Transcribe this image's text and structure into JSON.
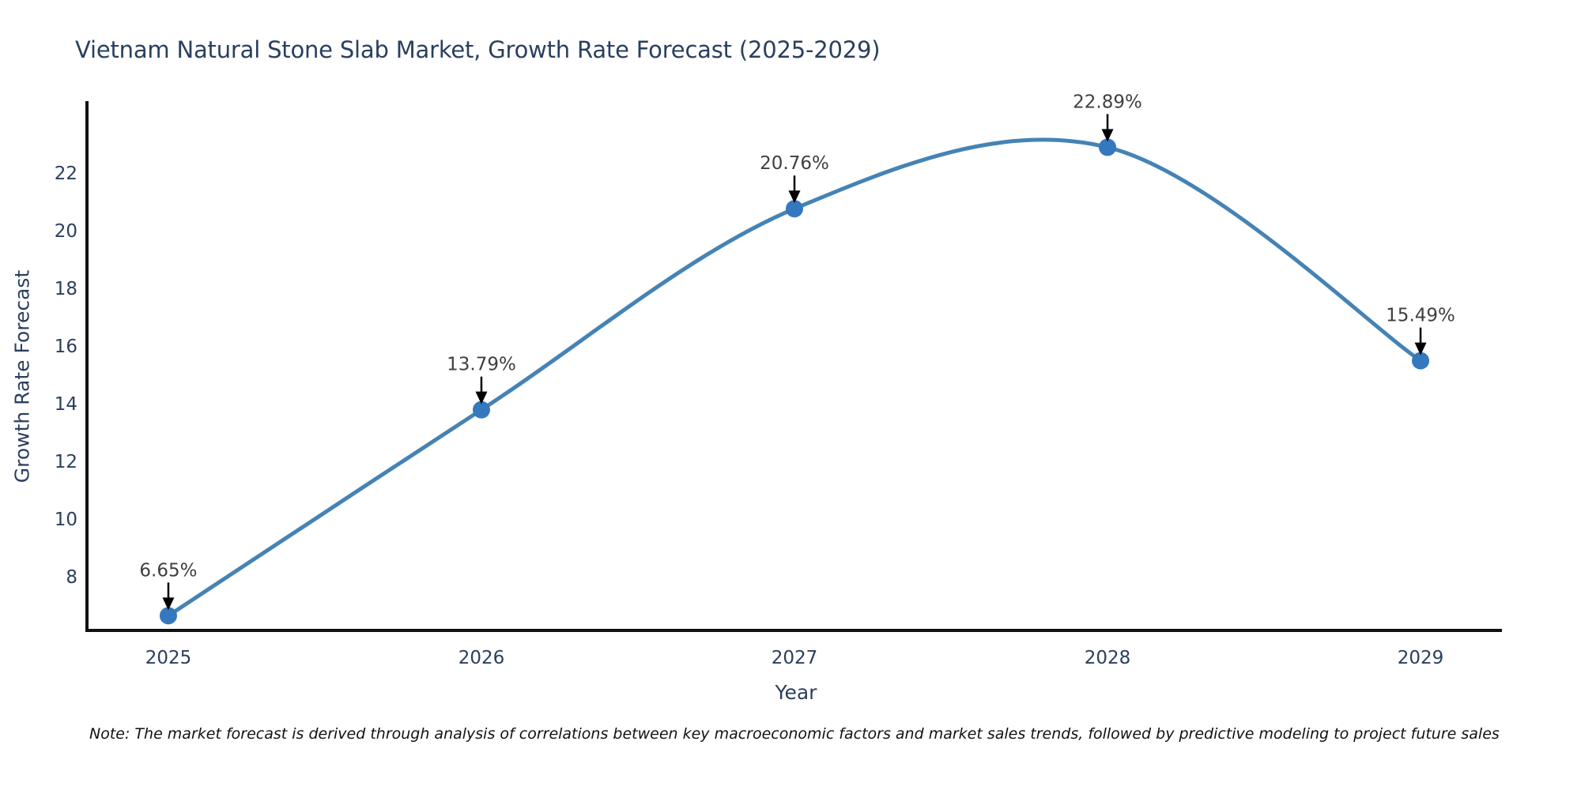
{
  "title": "Vietnam Natural Stone Slab Market, Growth Rate Forecast (2025-2029)",
  "note": "Note: The market forecast is derived through analysis of correlations between key macroeconomic factors and market sales trends, followed by predictive modeling to project future sales",
  "chart_data": {
    "type": "line",
    "title": "Vietnam Natural Stone Slab Market, Growth Rate Forecast (2025-2029)",
    "xlabel": "Year",
    "ylabel": "Growth Rate Forecast",
    "x": [
      2025,
      2026,
      2027,
      2028,
      2029
    ],
    "series": [
      {
        "name": "Growth Rate Forecast",
        "values": [
          6.65,
          13.79,
          20.76,
          22.89,
          15.49
        ],
        "point_labels": [
          "6.65%",
          "13.79%",
          "20.76%",
          "22.89%",
          "15.49%"
        ]
      }
    ],
    "line_shape": "spline",
    "markers": true,
    "annotations_arrows": true,
    "grid": false,
    "legend_position": "none",
    "xticks": [
      "2025",
      "2026",
      "2027",
      "2028",
      "2029"
    ],
    "yticks": [
      8,
      10,
      12,
      14,
      16,
      18,
      20,
      22
    ],
    "xlim": [
      2024.74,
      2029.26
    ],
    "ylim": [
      6.14,
      24.49
    ],
    "colors": {
      "line": "#4583b5",
      "marker": "#3478bd",
      "axis_line": "#111111",
      "tick_text": "#2a3f5f",
      "title_text": "#2a3f5f",
      "annotation_text": "#3f3f3f",
      "arrow": "#000000",
      "background": "#ffffff"
    }
  }
}
